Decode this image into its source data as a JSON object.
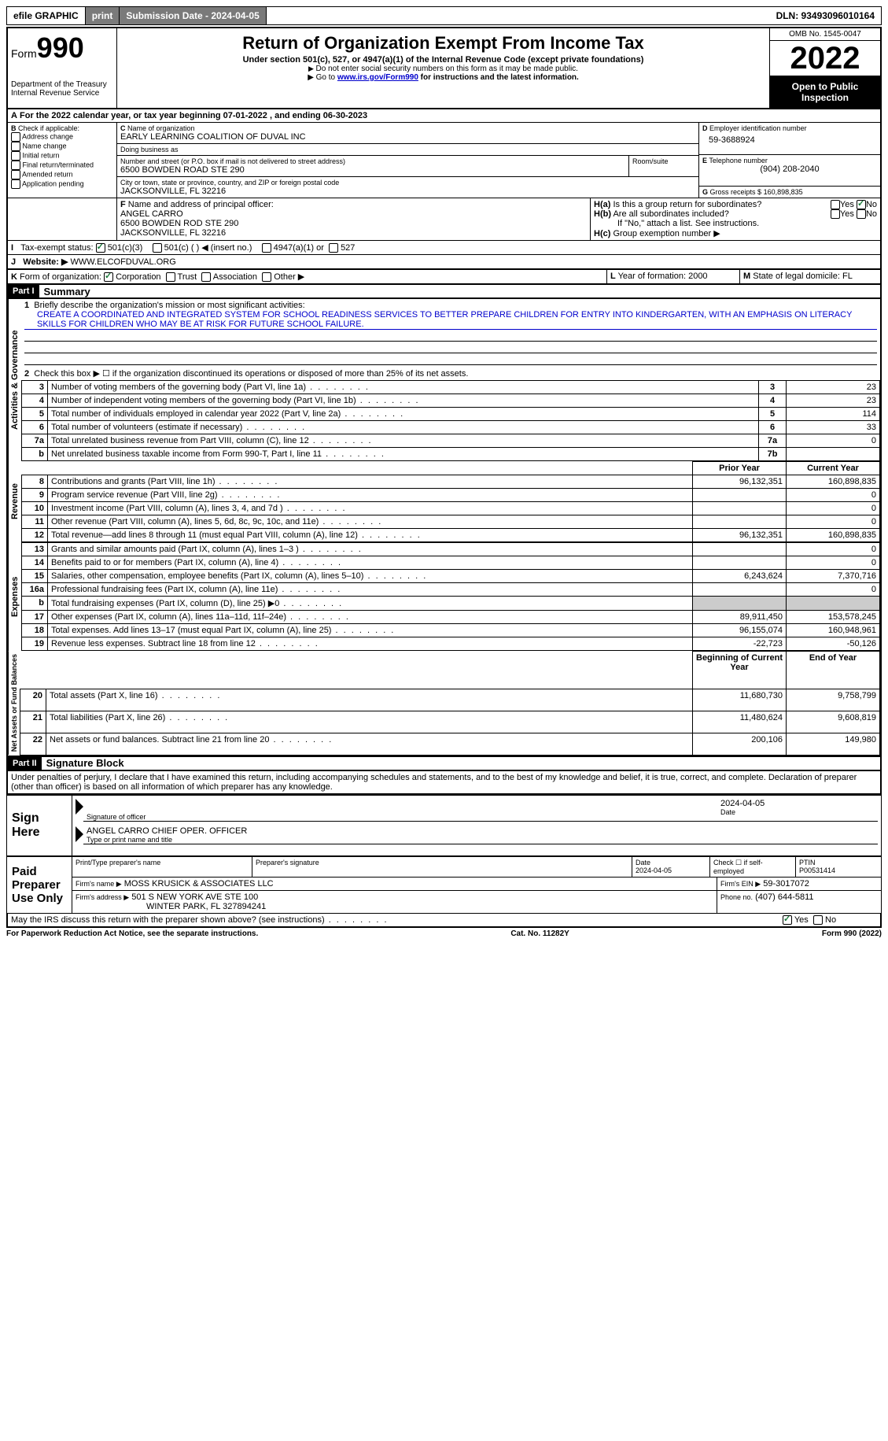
{
  "topbar": {
    "efile": "efile GRAPHIC",
    "print": "print",
    "submission": "Submission Date - 2024-04-05",
    "dln": "DLN: 93493096010164"
  },
  "header": {
    "form_word": "Form",
    "form_num": "990",
    "dept": "Department of the Treasury\nInternal Revenue Service",
    "title": "Return of Organization Exempt From Income Tax",
    "subtitle": "Under section 501(c), 527, or 4947(a)(1) of the Internal Revenue Code (except private foundations)",
    "note1": "Do not enter social security numbers on this form as it may be made public.",
    "note2_pre": "Go to ",
    "note2_link": "www.irs.gov/Form990",
    "note2_post": " for instructions and the latest information.",
    "omb": "OMB No. 1545-0047",
    "year": "2022",
    "inspection": "Open to Public Inspection"
  },
  "A": {
    "text_pre": "For the 2022 calendar year, or tax year beginning ",
    "begin": "07-01-2022",
    "text_mid": " , and ending ",
    "end": "06-30-2023"
  },
  "B": {
    "label": "Check if applicable:",
    "items": [
      "Address change",
      "Name change",
      "Initial return",
      "Final return/terminated",
      "Amended return",
      "Application pending"
    ]
  },
  "C": {
    "name_label": "Name of organization",
    "name": "EARLY LEARNING COALITION OF DUVAL INC",
    "dba_label": "Doing business as",
    "addr_label": "Number and street (or P.O. box if mail is not delivered to street address)",
    "room_label": "Room/suite",
    "addr": "6500 BOWDEN ROAD STE 290",
    "city_label": "City or town, state or province, country, and ZIP or foreign postal code",
    "city": "JACKSONVILLE, FL  32216"
  },
  "D": {
    "label": "Employer identification number",
    "val": "59-3688924"
  },
  "E": {
    "label": "Telephone number",
    "val": "(904) 208-2040"
  },
  "G": {
    "label": "Gross receipts $",
    "val": "160,898,835"
  },
  "F": {
    "label": "Name and address of principal officer:",
    "name": "ANGEL CARRO",
    "addr1": "6500 BOWDEN ROD STE 290",
    "addr2": "JACKSONVILLE, FL  32216"
  },
  "H": {
    "a": "Is this a group return for subordinates?",
    "b": "Are all subordinates included?",
    "b_note": "If \"No,\" attach a list. See instructions.",
    "c": "Group exemption number ▶",
    "yes": "Yes",
    "no": "No"
  },
  "I": {
    "label": "Tax-exempt status:",
    "opt1": "501(c)(3)",
    "opt2": "501(c) (  ) ◀ (insert no.)",
    "opt3": "4947(a)(1) or",
    "opt4": "527"
  },
  "J": {
    "label": "Website: ▶",
    "val": "WWW.ELCOFDUVAL.ORG"
  },
  "K": {
    "label": "Form of organization:",
    "opts": [
      "Corporation",
      "Trust",
      "Association",
      "Other ▶"
    ]
  },
  "L": {
    "label": "Year of formation:",
    "val": "2000"
  },
  "M": {
    "label": "State of legal domicile:",
    "val": "FL"
  },
  "part1": {
    "label": "Part I",
    "title": "Summary"
  },
  "summary": {
    "line1_label": "Briefly describe the organization's mission or most significant activities:",
    "line1_text": "CREATE A COORDINATED AND INTEGRATED SYSTEM FOR SCHOOL READINESS SERVICES TO BETTER PREPARE CHILDREN FOR ENTRY INTO KINDERGARTEN, WITH AN EMPHASIS ON LITERACY SKILLS FOR CHILDREN WHO MAY BE AT RISK FOR FUTURE SCHOOL FAILURE.",
    "line2": "Check this box ▶ ☐ if the organization discontinued its operations or disposed of more than 25% of its net assets.",
    "rows_gov": [
      {
        "n": "3",
        "t": "Number of voting members of the governing body (Part VI, line 1a)",
        "box": "3",
        "v": "23"
      },
      {
        "n": "4",
        "t": "Number of independent voting members of the governing body (Part VI, line 1b)",
        "box": "4",
        "v": "23"
      },
      {
        "n": "5",
        "t": "Total number of individuals employed in calendar year 2022 (Part V, line 2a)",
        "box": "5",
        "v": "114"
      },
      {
        "n": "6",
        "t": "Total number of volunteers (estimate if necessary)",
        "box": "6",
        "v": "33"
      },
      {
        "n": "7a",
        "t": "Total unrelated business revenue from Part VIII, column (C), line 12",
        "box": "7a",
        "v": "0"
      },
      {
        "n": "b",
        "t": "Net unrelated business taxable income from Form 990-T, Part I, line 11",
        "box": "7b",
        "v": ""
      }
    ],
    "col_prior": "Prior Year",
    "col_current": "Current Year",
    "rows_rev": [
      {
        "n": "8",
        "t": "Contributions and grants (Part VIII, line 1h)",
        "p": "96,132,351",
        "c": "160,898,835"
      },
      {
        "n": "9",
        "t": "Program service revenue (Part VIII, line 2g)",
        "p": "",
        "c": "0"
      },
      {
        "n": "10",
        "t": "Investment income (Part VIII, column (A), lines 3, 4, and 7d )",
        "p": "",
        "c": "0"
      },
      {
        "n": "11",
        "t": "Other revenue (Part VIII, column (A), lines 5, 6d, 8c, 9c, 10c, and 11e)",
        "p": "",
        "c": "0"
      },
      {
        "n": "12",
        "t": "Total revenue—add lines 8 through 11 (must equal Part VIII, column (A), line 12)",
        "p": "96,132,351",
        "c": "160,898,835"
      }
    ],
    "rows_exp": [
      {
        "n": "13",
        "t": "Grants and similar amounts paid (Part IX, column (A), lines 1–3 )",
        "p": "",
        "c": "0"
      },
      {
        "n": "14",
        "t": "Benefits paid to or for members (Part IX, column (A), line 4)",
        "p": "",
        "c": "0"
      },
      {
        "n": "15",
        "t": "Salaries, other compensation, employee benefits (Part IX, column (A), lines 5–10)",
        "p": "6,243,624",
        "c": "7,370,716"
      },
      {
        "n": "16a",
        "t": "Professional fundraising fees (Part IX, column (A), line 11e)",
        "p": "",
        "c": "0"
      },
      {
        "n": "b",
        "t": "Total fundraising expenses (Part IX, column (D), line 25) ▶0",
        "p": "shade",
        "c": "shade"
      },
      {
        "n": "17",
        "t": "Other expenses (Part IX, column (A), lines 11a–11d, 11f–24e)",
        "p": "89,911,450",
        "c": "153,578,245"
      },
      {
        "n": "18",
        "t": "Total expenses. Add lines 13–17 (must equal Part IX, column (A), line 25)",
        "p": "96,155,074",
        "c": "160,948,961"
      },
      {
        "n": "19",
        "t": "Revenue less expenses. Subtract line 18 from line 12",
        "p": "-22,723",
        "c": "-50,126"
      }
    ],
    "col_begin": "Beginning of Current Year",
    "col_end": "End of Year",
    "rows_net": [
      {
        "n": "20",
        "t": "Total assets (Part X, line 16)",
        "p": "11,680,730",
        "c": "9,758,799"
      },
      {
        "n": "21",
        "t": "Total liabilities (Part X, line 26)",
        "p": "11,480,624",
        "c": "9,608,819"
      },
      {
        "n": "22",
        "t": "Net assets or fund balances. Subtract line 21 from line 20",
        "p": "200,106",
        "c": "149,980"
      }
    ],
    "tab_gov": "Activities & Governance",
    "tab_rev": "Revenue",
    "tab_exp": "Expenses",
    "tab_net": "Net Assets or Fund Balances"
  },
  "part2": {
    "label": "Part II",
    "title": "Signature Block"
  },
  "sig": {
    "declaration": "Under penalties of perjury, I declare that I have examined this return, including accompanying schedules and statements, and to the best of my knowledge and belief, it is true, correct, and complete. Declaration of preparer (other than officer) is based on all information of which preparer has any knowledge.",
    "sign_here": "Sign Here",
    "sig_officer": "Signature of officer",
    "sig_date": "2024-04-05",
    "date_label": "Date",
    "officer_name": "ANGEL CARRO  CHIEF OPER. OFFICER",
    "officer_label": "Type or print name and title",
    "paid": "Paid Preparer Use Only",
    "prep_name_label": "Print/Type preparer's name",
    "prep_sig_label": "Preparer's signature",
    "prep_date_label": "Date",
    "prep_date": "2024-04-05",
    "check_label": "Check ☐ if self-employed",
    "ptin_label": "PTIN",
    "ptin": "P00531414",
    "firm_name_label": "Firm's name    ▶",
    "firm_name": "MOSS KRUSICK & ASSOCIATES LLC",
    "firm_ein_label": "Firm's EIN ▶",
    "firm_ein": "59-3017072",
    "firm_addr_label": "Firm's address ▶",
    "firm_addr1": "501 S NEW YORK AVE STE 100",
    "firm_addr2": "WINTER PARK, FL  327894241",
    "phone_label": "Phone no.",
    "phone": "(407) 644-5811",
    "discuss": "May the IRS discuss this return with the preparer shown above? (see instructions)"
  },
  "footer": {
    "left": "For Paperwork Reduction Act Notice, see the separate instructions.",
    "mid": "Cat. No. 11282Y",
    "right": "Form 990 (2022)"
  }
}
